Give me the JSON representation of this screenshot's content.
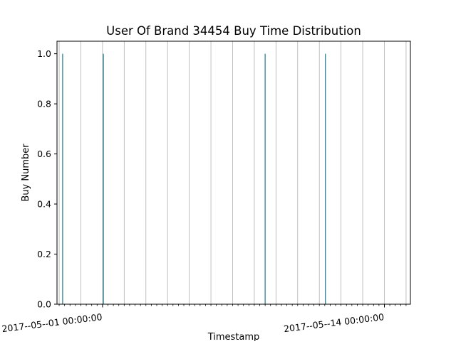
{
  "chart_data": {
    "type": "bar",
    "title": "User Of Brand 34454 Buy Time Distribution",
    "xlabel": "Timestamp",
    "ylabel": "Buy Number",
    "x_tick_labels": [
      "2017--05--01 00:00:00",
      "2017--05--14 00:00:00"
    ],
    "x_tick_label_days": [
      1,
      14
    ],
    "y_ticks": [
      "0.0",
      "0.2",
      "0.4",
      "0.6",
      "0.8",
      "1.0"
    ],
    "ylim": [
      0,
      1.05
    ],
    "xlim_days": [
      -1.1,
      15.2
    ],
    "grid": "vertical",
    "series": [
      {
        "values": [
          {
            "day": -0.84,
            "value": 1
          },
          {
            "day": 1.04,
            "value": 1
          },
          {
            "day": 8.5,
            "value": 1
          },
          {
            "day": 11.28,
            "value": 1
          }
        ]
      }
    ],
    "colors": {
      "bar": "#1f7a8c",
      "grid": "#b0b0b0",
      "axis": "#000000"
    }
  }
}
